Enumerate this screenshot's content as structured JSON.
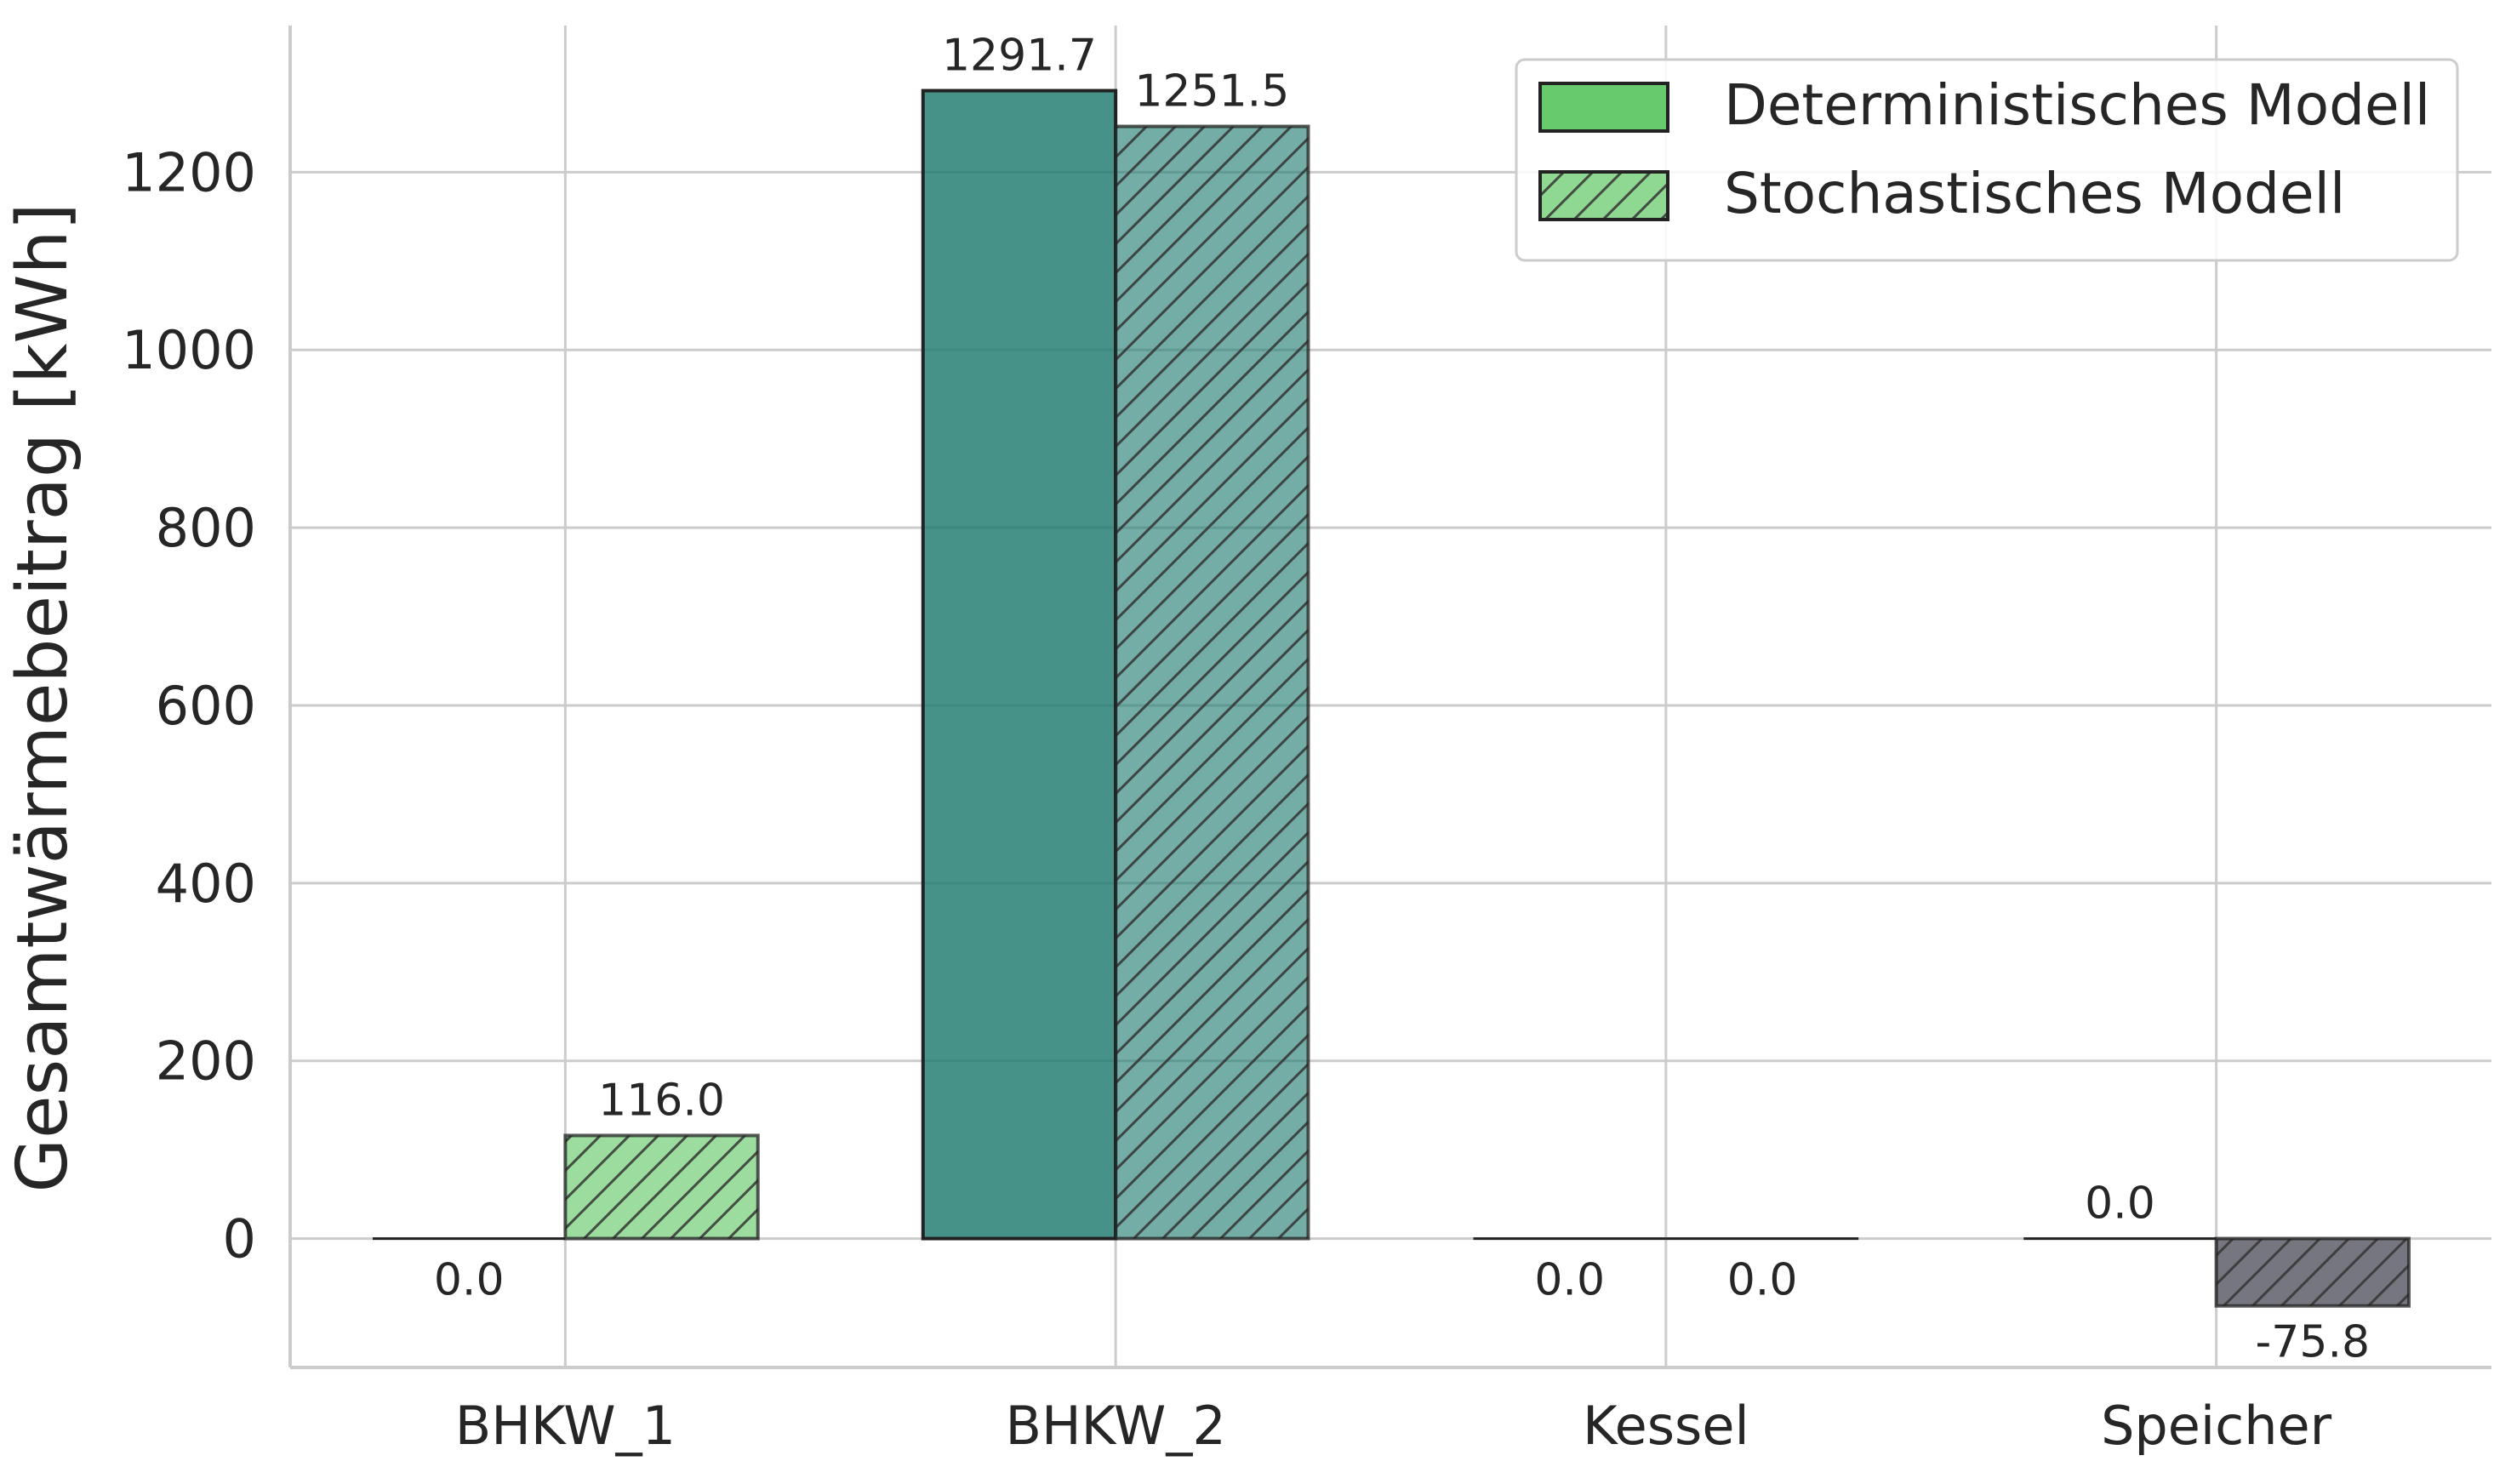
{
  "chart_data": {
    "type": "bar",
    "ylabel": "Gesamtwärmebeitrag [kWh]",
    "xlabel": "",
    "categories": [
      "BHKW_1",
      "BHKW_2",
      "Kessel",
      "Speicher"
    ],
    "ylim": [
      -145,
      1365
    ],
    "yticks": [
      0,
      200,
      400,
      600,
      800,
      1000,
      1200
    ],
    "grid": true,
    "legend_position": "top-right",
    "series": [
      {
        "name": "Deterministisches Modell",
        "hatch": false,
        "values": [
          0.0,
          1291.7,
          0.0,
          0.0
        ],
        "value_labels": [
          "0.0",
          "1291.7",
          "0.0",
          "0.0"
        ],
        "colors": [
          "#5fc764",
          "#1f7a6e",
          "#3b4f8c",
          "#222222"
        ]
      },
      {
        "name": "Stochastisches Modell",
        "hatch": true,
        "values": [
          116.0,
          1251.5,
          0.0,
          -75.8
        ],
        "value_labels": [
          "116.0",
          "1251.5",
          "0.0",
          "-75.8"
        ],
        "colors": [
          "#5fc764",
          "#1f7a6e",
          "#3b4f8c",
          "#222232"
        ]
      }
    ],
    "legend_color": "#5fc764"
  }
}
